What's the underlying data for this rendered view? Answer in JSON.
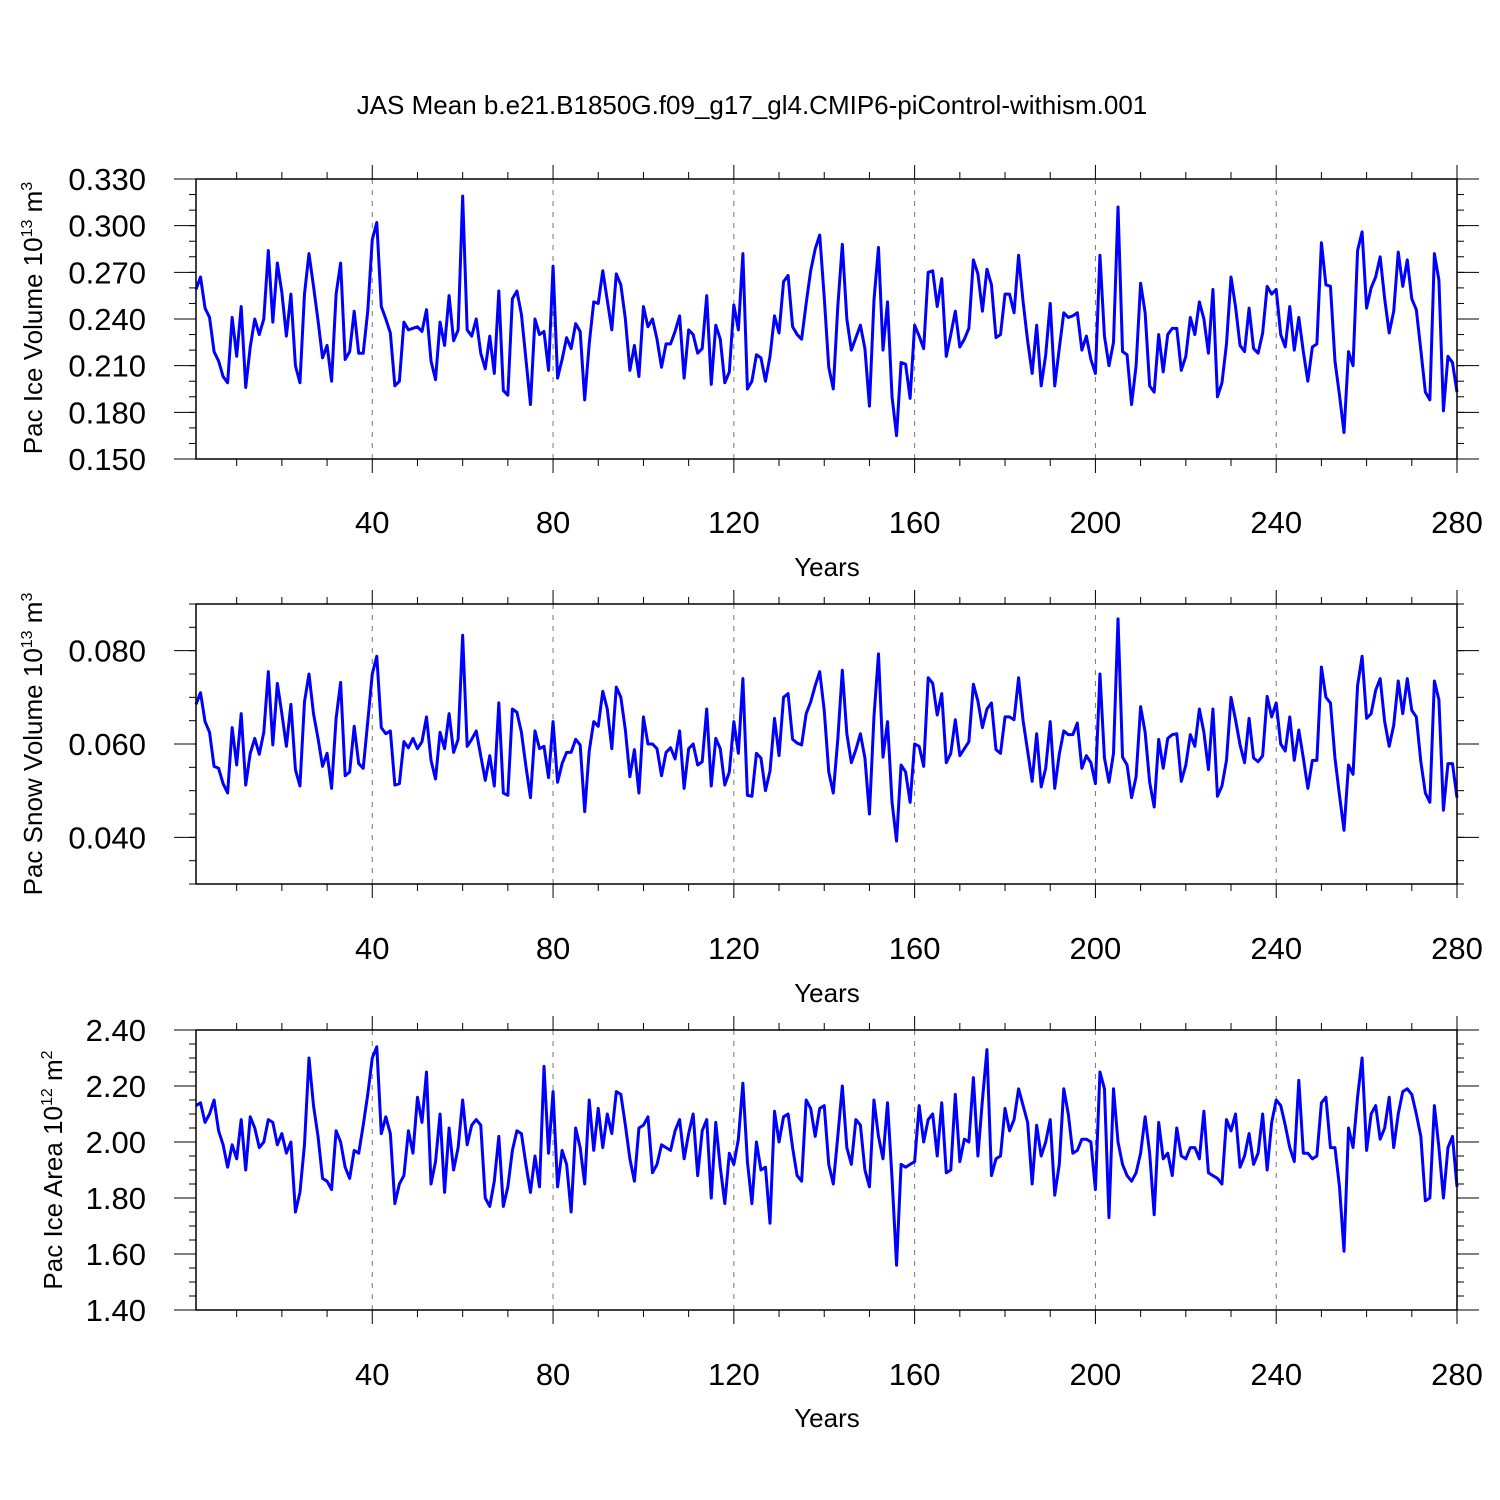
{
  "chart_data": {
    "title": "JAS Mean b.e21.B1850G.f09_g17_gl4.CMIP6-piControl-withism.001",
    "type": "line",
    "line_color": "#0000ff",
    "panels": [
      {
        "type": "line",
        "ylabel": "Pac Ice Volume 10",
        "ylabel_exp": "13",
        "ylabel_unit": " m",
        "ylabel_unit_exp": "3",
        "xlabel": "Years",
        "xlim": [
          1,
          280
        ],
        "ylim": [
          0.15,
          0.33
        ],
        "x_ticks": [
          40,
          80,
          120,
          160,
          200,
          240,
          280
        ],
        "x_tick_labels": [
          "40",
          "80",
          "120",
          "160",
          "200",
          "240",
          "280"
        ],
        "y_ticks": [
          0.15,
          0.18,
          0.21,
          0.24,
          0.27,
          0.3,
          0.33
        ],
        "y_tick_labels": [
          "0.150",
          "0.180",
          "0.210",
          "0.240",
          "0.270",
          "0.300",
          "0.330"
        ],
        "y_minor_step": 0.01,
        "x_minor_step": 10,
        "values": [
          0.259,
          0.267,
          0.247,
          0.241,
          0.219,
          0.213,
          0.203,
          0.199,
          0.241,
          0.216,
          0.248,
          0.196,
          0.222,
          0.24,
          0.23,
          0.24,
          0.284,
          0.238,
          0.276,
          0.257,
          0.229,
          0.256,
          0.21,
          0.199,
          0.256,
          0.282,
          0.261,
          0.239,
          0.215,
          0.223,
          0.2,
          0.256,
          0.276,
          0.214,
          0.219,
          0.245,
          0.218,
          0.218,
          0.245,
          0.291,
          0.302,
          0.248,
          0.24,
          0.231,
          0.197,
          0.2,
          0.238,
          0.233,
          0.234,
          0.235,
          0.232,
          0.246,
          0.213,
          0.201,
          0.238,
          0.223,
          0.255,
          0.226,
          0.233,
          0.319,
          0.233,
          0.229,
          0.24,
          0.218,
          0.208,
          0.229,
          0.205,
          0.258,
          0.194,
          0.191,
          0.253,
          0.258,
          0.243,
          0.214,
          0.185,
          0.24,
          0.23,
          0.232,
          0.207,
          0.274,
          0.202,
          0.214,
          0.228,
          0.221,
          0.237,
          0.232,
          0.188,
          0.224,
          0.251,
          0.25,
          0.271,
          0.252,
          0.233,
          0.269,
          0.262,
          0.24,
          0.207,
          0.223,
          0.203,
          0.248,
          0.235,
          0.24,
          0.227,
          0.209,
          0.224,
          0.224,
          0.232,
          0.242,
          0.202,
          0.233,
          0.23,
          0.218,
          0.221,
          0.255,
          0.198,
          0.236,
          0.227,
          0.199,
          0.206,
          0.249,
          0.233,
          0.282,
          0.195,
          0.2,
          0.217,
          0.215,
          0.2,
          0.216,
          0.242,
          0.231,
          0.264,
          0.268,
          0.235,
          0.23,
          0.227,
          0.25,
          0.271,
          0.285,
          0.294,
          0.254,
          0.209,
          0.195,
          0.248,
          0.288,
          0.24,
          0.22,
          0.228,
          0.236,
          0.221,
          0.184,
          0.252,
          0.286,
          0.22,
          0.251,
          0.19,
          0.165,
          0.212,
          0.211,
          0.189,
          0.236,
          0.229,
          0.221,
          0.27,
          0.271,
          0.248,
          0.266,
          0.216,
          0.23,
          0.245,
          0.222,
          0.227,
          0.234,
          0.278,
          0.269,
          0.245,
          0.272,
          0.262,
          0.228,
          0.23,
          0.256,
          0.256,
          0.244,
          0.281,
          0.251,
          0.226,
          0.205,
          0.236,
          0.197,
          0.217,
          0.25,
          0.197,
          0.221,
          0.244,
          0.241,
          0.242,
          0.244,
          0.22,
          0.229,
          0.214,
          0.205,
          0.281,
          0.229,
          0.21,
          0.225,
          0.312,
          0.219,
          0.217,
          0.185,
          0.21,
          0.263,
          0.244,
          0.197,
          0.193,
          0.23,
          0.206,
          0.23,
          0.234,
          0.234,
          0.207,
          0.216,
          0.241,
          0.23,
          0.251,
          0.24,
          0.218,
          0.259,
          0.19,
          0.199,
          0.224,
          0.267,
          0.248,
          0.223,
          0.219,
          0.247,
          0.221,
          0.218,
          0.231,
          0.261,
          0.256,
          0.259,
          0.23,
          0.222,
          0.248,
          0.22,
          0.241,
          0.219,
          0.2,
          0.222,
          0.224,
          0.289,
          0.262,
          0.261,
          0.213,
          0.191,
          0.167,
          0.219,
          0.21,
          0.284,
          0.296,
          0.247,
          0.26,
          0.267,
          0.28,
          0.253,
          0.231,
          0.245,
          0.283,
          0.261,
          0.278,
          0.253,
          0.246,
          0.22,
          0.193,
          0.188,
          0.282,
          0.265,
          0.181,
          0.216,
          0.212,
          0.193
        ]
      },
      {
        "type": "line",
        "ylabel": "Pac Snow Volume 10",
        "ylabel_exp": "13",
        "ylabel_unit": " m",
        "ylabel_unit_exp": "3",
        "xlabel": "Years",
        "xlim": [
          1,
          280
        ],
        "ylim": [
          0.03,
          0.09
        ],
        "x_ticks": [
          40,
          80,
          120,
          160,
          200,
          240,
          280
        ],
        "x_tick_labels": [
          "40",
          "80",
          "120",
          "160",
          "200",
          "240",
          "280"
        ],
        "y_ticks": [
          0.04,
          0.06,
          0.08
        ],
        "y_tick_labels": [
          "0.040",
          "0.060",
          "0.080"
        ],
        "y_minor_step": 0.005,
        "x_minor_step": 10,
        "values": [
          0.0685,
          0.071,
          0.0648,
          0.0625,
          0.0552,
          0.0548,
          0.0515,
          0.0495,
          0.0635,
          0.0555,
          0.0665,
          0.0512,
          0.058,
          0.0612,
          0.0578,
          0.0625,
          0.0755,
          0.0598,
          0.073,
          0.0665,
          0.0595,
          0.0685,
          0.0545,
          0.051,
          0.069,
          0.075,
          0.0665,
          0.0612,
          0.0552,
          0.058,
          0.0505,
          0.0655,
          0.0732,
          0.0532,
          0.054,
          0.0638,
          0.0558,
          0.0548,
          0.0648,
          0.075,
          0.0788,
          0.0635,
          0.0622,
          0.0628,
          0.0512,
          0.0515,
          0.0605,
          0.0592,
          0.0612,
          0.059,
          0.0605,
          0.0658,
          0.0565,
          0.0525,
          0.0625,
          0.059,
          0.0665,
          0.0582,
          0.061,
          0.0833,
          0.0595,
          0.061,
          0.0628,
          0.0575,
          0.0522,
          0.0575,
          0.051,
          0.0688,
          0.0495,
          0.049,
          0.0675,
          0.0668,
          0.0625,
          0.0552,
          0.0485,
          0.0628,
          0.059,
          0.0595,
          0.0528,
          0.0648,
          0.0518,
          0.0558,
          0.0582,
          0.0582,
          0.061,
          0.0598,
          0.0455,
          0.0585,
          0.0648,
          0.0638,
          0.0713,
          0.0675,
          0.059,
          0.0722,
          0.07,
          0.063,
          0.053,
          0.0588,
          0.0495,
          0.0658,
          0.06,
          0.06,
          0.059,
          0.0532,
          0.0582,
          0.0592,
          0.0568,
          0.0628,
          0.0505,
          0.059,
          0.06,
          0.0555,
          0.0562,
          0.0675,
          0.051,
          0.0612,
          0.059,
          0.0512,
          0.054,
          0.0648,
          0.058,
          0.074,
          0.049,
          0.0488,
          0.058,
          0.057,
          0.05,
          0.0542,
          0.0655,
          0.0575,
          0.07,
          0.0708,
          0.061,
          0.0602,
          0.0598,
          0.0665,
          0.069,
          0.0725,
          0.0755,
          0.0672,
          0.054,
          0.0495,
          0.061,
          0.0758,
          0.0622,
          0.056,
          0.0588,
          0.0622,
          0.057,
          0.045,
          0.0658,
          0.0793,
          0.0572,
          0.0648,
          0.0475,
          0.0392,
          0.0555,
          0.054,
          0.0475,
          0.06,
          0.0595,
          0.0552,
          0.0742,
          0.073,
          0.0662,
          0.0708,
          0.056,
          0.058,
          0.0652,
          0.0575,
          0.059,
          0.0605,
          0.0728,
          0.0692,
          0.0635,
          0.0675,
          0.0688,
          0.0588,
          0.058,
          0.0658,
          0.0658,
          0.0652,
          0.0742,
          0.065,
          0.0585,
          0.052,
          0.0622,
          0.0508,
          0.0548,
          0.0648,
          0.0505,
          0.0578,
          0.0628,
          0.062,
          0.062,
          0.0645,
          0.0548,
          0.0575,
          0.056,
          0.0515,
          0.075,
          0.057,
          0.0518,
          0.058,
          0.0868,
          0.0572,
          0.0555,
          0.0485,
          0.053,
          0.068,
          0.0625,
          0.0518,
          0.0465,
          0.061,
          0.0548,
          0.0612,
          0.062,
          0.0622,
          0.052,
          0.0555,
          0.062,
          0.0595,
          0.0675,
          0.0625,
          0.0545,
          0.0675,
          0.0488,
          0.051,
          0.0565,
          0.07,
          0.0652,
          0.0598,
          0.056,
          0.0655,
          0.057,
          0.0562,
          0.0575,
          0.0702,
          0.0658,
          0.0688,
          0.06,
          0.0585,
          0.0658,
          0.0565,
          0.063,
          0.057,
          0.0505,
          0.0565,
          0.0565,
          0.0765,
          0.07,
          0.0688,
          0.057,
          0.049,
          0.0415,
          0.0555,
          0.0535,
          0.0725,
          0.0788,
          0.0655,
          0.0665,
          0.0715,
          0.074,
          0.0648,
          0.0595,
          0.064,
          0.0735,
          0.0665,
          0.074,
          0.0672,
          0.0658,
          0.0562,
          0.0495,
          0.0475,
          0.0735,
          0.0695,
          0.0458,
          0.0558,
          0.0558,
          0.0485
        ]
      },
      {
        "type": "line",
        "ylabel": "Pac Ice Area 10",
        "ylabel_exp": "12",
        "ylabel_unit": " m",
        "ylabel_unit_exp": "2",
        "xlabel": "Years",
        "xlim": [
          1,
          280
        ],
        "ylim": [
          1.4,
          2.4
        ],
        "x_ticks": [
          40,
          80,
          120,
          160,
          200,
          240,
          280
        ],
        "x_tick_labels": [
          "40",
          "80",
          "120",
          "160",
          "200",
          "240",
          "280"
        ],
        "y_ticks": [
          1.4,
          1.6,
          1.8,
          2.0,
          2.2,
          2.4
        ],
        "y_tick_labels": [
          "1.40",
          "1.60",
          "1.80",
          "2.00",
          "2.20",
          "2.40"
        ],
        "y_minor_step": 0.05,
        "x_minor_step": 10,
        "values": [
          2.13,
          2.14,
          2.07,
          2.1,
          2.15,
          2.04,
          1.99,
          1.91,
          1.99,
          1.94,
          2.08,
          1.9,
          2.09,
          2.05,
          1.98,
          2.0,
          2.08,
          2.07,
          1.99,
          2.03,
          1.96,
          2.0,
          1.75,
          1.82,
          1.99,
          2.3,
          2.13,
          2.02,
          1.87,
          1.86,
          1.83,
          2.04,
          2.0,
          1.91,
          1.87,
          1.97,
          1.96,
          2.06,
          2.17,
          2.3,
          2.34,
          2.03,
          2.09,
          2.03,
          1.78,
          1.85,
          1.88,
          2.04,
          1.96,
          2.16,
          2.07,
          2.25,
          1.85,
          1.93,
          2.1,
          1.82,
          2.05,
          1.9,
          1.98,
          2.15,
          1.99,
          2.06,
          2.08,
          2.06,
          1.8,
          1.77,
          1.86,
          2.02,
          1.77,
          1.84,
          1.97,
          2.04,
          2.03,
          1.92,
          1.82,
          1.95,
          1.84,
          2.27,
          1.96,
          2.18,
          1.84,
          1.97,
          1.92,
          1.75,
          2.05,
          1.98,
          1.85,
          2.15,
          1.97,
          2.12,
          1.98,
          2.1,
          2.03,
          2.18,
          2.17,
          2.06,
          1.94,
          1.86,
          2.05,
          2.06,
          2.09,
          1.89,
          1.92,
          1.99,
          1.98,
          1.97,
          2.04,
          2.08,
          1.94,
          2.03,
          2.1,
          1.88,
          2.04,
          2.08,
          1.8,
          2.07,
          1.91,
          1.78,
          1.96,
          1.92,
          2.01,
          2.21,
          1.93,
          1.78,
          2.0,
          1.9,
          1.91,
          1.71,
          2.11,
          2.0,
          2.09,
          2.1,
          1.98,
          1.88,
          1.86,
          2.15,
          2.12,
          2.02,
          2.12,
          2.13,
          1.92,
          1.85,
          2.02,
          2.2,
          1.98,
          1.92,
          2.08,
          2.06,
          1.9,
          1.84,
          2.15,
          2.02,
          1.94,
          2.14,
          1.87,
          1.56,
          1.92,
          1.91,
          1.92,
          1.93,
          2.13,
          2.0,
          2.08,
          2.1,
          1.95,
          2.14,
          1.89,
          1.9,
          2.17,
          1.93,
          2.01,
          2.0,
          2.23,
          1.95,
          2.15,
          2.33,
          1.88,
          1.94,
          1.95,
          2.12,
          2.04,
          2.08,
          2.19,
          2.13,
          2.07,
          1.85,
          2.06,
          1.95,
          2.0,
          2.08,
          1.81,
          1.92,
          2.19,
          2.1,
          1.96,
          1.97,
          2.01,
          2.01,
          2.0,
          1.83,
          2.25,
          2.19,
          1.73,
          2.19,
          2.0,
          1.92,
          1.88,
          1.86,
          1.89,
          1.96,
          2.09,
          1.96,
          1.74,
          2.07,
          1.94,
          1.96,
          1.88,
          2.05,
          1.95,
          1.94,
          1.98,
          1.98,
          1.94,
          2.11,
          1.89,
          1.88,
          1.87,
          1.85,
          2.08,
          2.04,
          2.1,
          1.91,
          1.95,
          2.03,
          1.92,
          1.96,
          2.1,
          1.9,
          2.07,
          2.15,
          2.13,
          2.06,
          1.98,
          1.93,
          2.22,
          1.96,
          1.96,
          1.94,
          1.95,
          2.14,
          2.16,
          1.98,
          1.98,
          1.84,
          1.61,
          2.05,
          1.98,
          2.16,
          2.3,
          1.97,
          2.1,
          2.13,
          2.01,
          2.05,
          2.16,
          1.98,
          2.1,
          2.18,
          2.19,
          2.17,
          2.1,
          2.02,
          1.79,
          1.8,
          2.13,
          1.98,
          1.8,
          1.98,
          2.02,
          1.84
        ]
      }
    ]
  }
}
